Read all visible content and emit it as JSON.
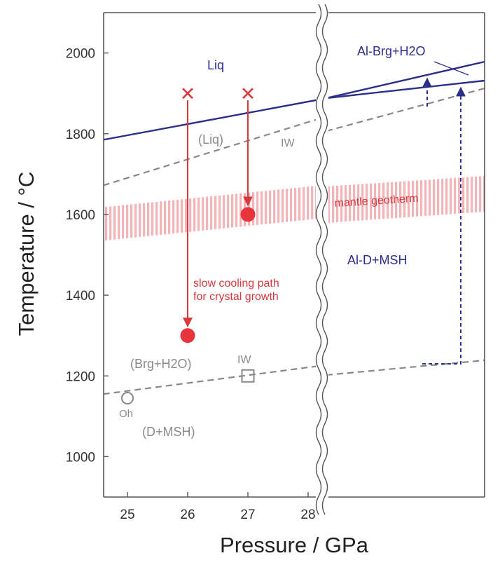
{
  "chart_data": {
    "type": "line",
    "xlabel": "Pressure / GPa",
    "ylabel_main": "Temperature / ",
    "ylabel_unit": "°C",
    "xlim": [
      24.6,
      28.2
    ],
    "ylim": [
      900,
      2100
    ],
    "x_ticks": [
      25,
      26,
      27,
      28
    ],
    "y_ticks": [
      1000,
      1200,
      1400,
      1600,
      1800,
      2000
    ],
    "axis_break": "wavy vertical break after 28 GPa (right panel unlabeled, higher pressures)",
    "colors": {
      "liquidus": "#2b2f8c",
      "iw_buffer": "#888888",
      "geotherm": "#f4b3b6",
      "cooling": "#d9383d"
    },
    "region_labels": {
      "liq": "Liq",
      "liq_paren": "(Liq)",
      "brg_h2o_top": "Al-Brg+H2O",
      "brg_h2o_paren": "(Brg+H2O)",
      "d_msh_right": "Al-D+MSH",
      "d_msh_paren": "(D+MSH)"
    },
    "line_labels": {
      "iw_upper": "IW",
      "iw_point": "IW",
      "oh_point": "Oh",
      "geotherm": "mantle geotherm"
    },
    "annotation": [
      "slow cooling path",
      "for crystal growth"
    ],
    "liquidus_left": {
      "x": [
        24.6,
        28.2
      ],
      "y": [
        1785,
        1885
      ]
    },
    "iw_upper_left": {
      "x": [
        24.6,
        28.2
      ],
      "y": [
        1672,
        1838
      ]
    },
    "iw_lower_left": {
      "x": [
        24.6,
        28.2
      ],
      "y": [
        1155,
        1225
      ]
    },
    "geotherm_band_left": {
      "x": [
        24.6,
        28.2
      ],
      "y_upper": [
        1618,
        1672
      ],
      "y_lower": [
        1535,
        1590
      ]
    },
    "cooling_paths": [
      {
        "x": 26,
        "start_temp": 1900,
        "end_temp": 1300
      },
      {
        "x": 27,
        "start_temp": 1900,
        "end_temp": 1600
      }
    ],
    "open_markers": [
      {
        "label": "IW",
        "shape": "square",
        "x": 27,
        "temp": 1200
      },
      {
        "label": "Oh",
        "shape": "circle",
        "x": 25,
        "temp": 1150
      }
    ]
  }
}
